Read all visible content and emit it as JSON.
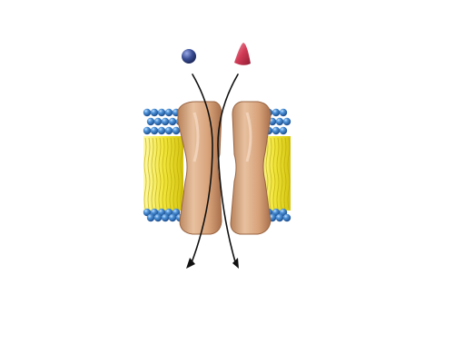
{
  "diagram": {
    "type": "membrane-channel-transport",
    "molecules": [
      {
        "name": "sphere-molecule",
        "shape": "sphere",
        "color": "#3b4f96"
      },
      {
        "name": "cone-molecule",
        "shape": "cone",
        "color": "#d03a55"
      }
    ],
    "membrane": {
      "head_color": "#3f7fc4",
      "tail_color": "#f1e53a",
      "protein_color": "#d9a57e"
    },
    "arrows": {
      "count": 2,
      "direction": "down",
      "color": "#111111"
    }
  }
}
